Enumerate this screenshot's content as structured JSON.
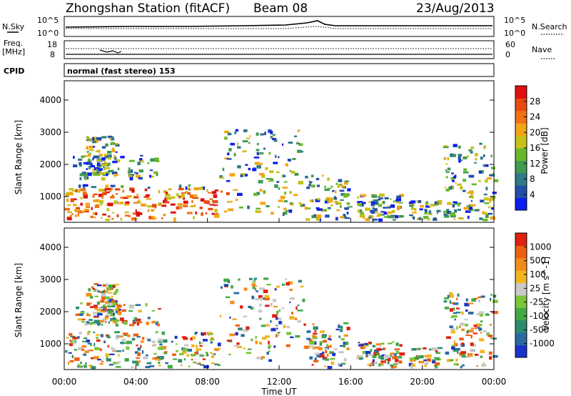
{
  "header": {
    "title": "Zhongshan Station (fitACF)",
    "beam": "Beam 08",
    "date": "23/Aug/2013"
  },
  "top_panel": {
    "left_label": "N.Sky",
    "left_ticks": [
      "10^5",
      "10^0"
    ],
    "right_ticks": [
      "10^5",
      "10^0"
    ],
    "right_label": "N.Search"
  },
  "freq_panel": {
    "left_label_1": "Freq.",
    "left_label_2": "[MHz]",
    "left_ticks": [
      "18",
      "8"
    ],
    "right_ticks": [
      "60",
      "0"
    ],
    "right_label": "Nave"
  },
  "cpid": {
    "label": "CPID",
    "value": "normal (fast stereo) 153"
  },
  "chart_data": [
    {
      "type": "heatmap",
      "ylabel": "Slant Range [km]",
      "yticks": [
        "1000",
        "2000",
        "3000",
        "4000"
      ],
      "ylim": [
        200,
        4600
      ],
      "colorbar": {
        "label": "Power [dB]",
        "ticks": [
          "4",
          "8",
          "12",
          "16",
          "20",
          "24",
          "28"
        ],
        "colors": [
          "#0d1ef0",
          "#234ea8",
          "#2f7a86",
          "#3f9a52",
          "#6ab82a",
          "#c7c21a",
          "#f2a516",
          "#f07215",
          "#e84a12",
          "#e01010"
        ]
      }
    },
    {
      "type": "heatmap",
      "ylabel": "Slant Range [km]",
      "yticks": [
        "1000",
        "2000",
        "3000",
        "4000"
      ],
      "ylim": [
        200,
        4600
      ],
      "colorbar": {
        "label": "Velocity [m s^-1]",
        "ticks": [
          "1000",
          "500",
          "100",
          "25",
          "-25",
          "-100",
          "-500",
          "-1000"
        ],
        "colors": [
          "#1a32c8",
          "#2a6aa0",
          "#2f8a6e",
          "#43a848",
          "#79c63a",
          "#c9c9c9",
          "#f3b51f",
          "#f28c1a",
          "#ed6012",
          "#e02010"
        ]
      }
    }
  ],
  "xaxis": {
    "ticks": [
      "00:00",
      "04:00",
      "08:00",
      "12:00",
      "16:00",
      "20:00",
      "00:00"
    ],
    "label": "Time UT"
  }
}
